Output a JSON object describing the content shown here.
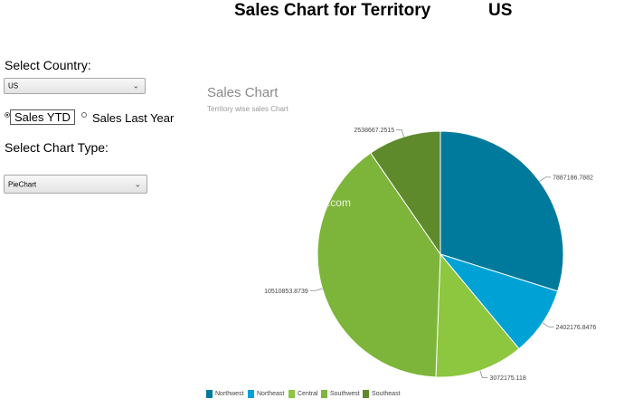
{
  "header": {
    "title": "Sales Chart for Territory",
    "territory": "US"
  },
  "controls": {
    "country_label": "Select Country:",
    "country_value": "US",
    "radio_options": [
      {
        "label": "Sales YTD",
        "selected": true
      },
      {
        "label": "Sales Last Year",
        "selected": false
      }
    ],
    "chart_type_label": "Select Chart Type:",
    "chart_type_value": "PieChart"
  },
  "watermark": "© DotNetCurry.com",
  "icons": {
    "dropdown": "chevron-down-icon"
  },
  "chart_data": {
    "type": "pie",
    "title": "Sales Chart",
    "subtitle": "Territory wise sales Chart",
    "legend_position": "bottom",
    "slices": [
      {
        "label": "Northwest",
        "value": 7887186.7882,
        "value_label": "7887186.7882",
        "color": "#007a9c"
      },
      {
        "label": "Northeast",
        "value": 2402176.8476,
        "value_label": "2402176.8476",
        "color": "#00a2d6"
      },
      {
        "label": "Central",
        "value": 3072175.118,
        "value_label": "3072175.118",
        "color": "#8dc63f"
      },
      {
        "label": "Southwest",
        "value": 10510853.8739,
        "value_label": "10510853.8739",
        "color": "#7db53a"
      },
      {
        "label": "Southeast",
        "value": 2538667.2515,
        "value_label": "2538667.2515",
        "color": "#5e8a2c"
      }
    ]
  }
}
